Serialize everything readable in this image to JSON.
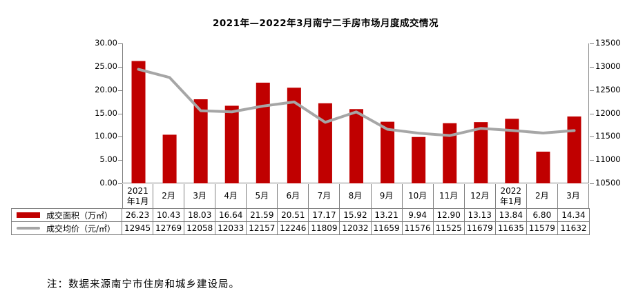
{
  "title": "2021年—2022年3月南宁二手房市场月度成交情况",
  "note": "注：数据来源南宁市住房和城乡建设局。",
  "colors": {
    "bar": "#C00000",
    "line": "#A6A6A6",
    "axis": "#808080",
    "table_border": "#808080",
    "text": "#000000",
    "background": "#FFFFFF"
  },
  "chart_data": {
    "type": "bar+line combo",
    "title": "2021年—2022年3月南宁二手房市场月度成交情况",
    "categories": [
      "2021年1月",
      "2月",
      "3月",
      "4月",
      "5月",
      "6月",
      "7月",
      "8月",
      "9月",
      "10月",
      "11月",
      "12月",
      "2022年1月",
      "2月",
      "3月"
    ],
    "series": [
      {
        "name": "成交面积（万㎡）",
        "type": "bar",
        "axis": "left",
        "value_format": "fixed2",
        "values": [
          26.23,
          10.43,
          18.03,
          16.64,
          21.59,
          20.51,
          17.17,
          15.92,
          13.21,
          9.94,
          12.9,
          13.13,
          13.84,
          6.8,
          14.34
        ]
      },
      {
        "name": "成交均价（元/㎡）",
        "type": "line",
        "axis": "right",
        "value_format": "int",
        "values": [
          12945,
          12769,
          12058,
          12033,
          12157,
          12246,
          11809,
          12032,
          11659,
          11576,
          11525,
          11679,
          11635,
          11579,
          11632
        ]
      }
    ],
    "left_axis": {
      "min": 0,
      "max": 30,
      "step": 5,
      "ticks": [
        "0.00",
        "5.00",
        "10.00",
        "15.00",
        "20.00",
        "25.00",
        "30.00"
      ]
    },
    "right_axis": {
      "min": 10500,
      "max": 13500,
      "step": 500,
      "ticks": [
        "10500",
        "11000",
        "11500",
        "12000",
        "12500",
        "13000",
        "13500"
      ]
    },
    "grid": false,
    "legend_position": "data-table-left"
  }
}
